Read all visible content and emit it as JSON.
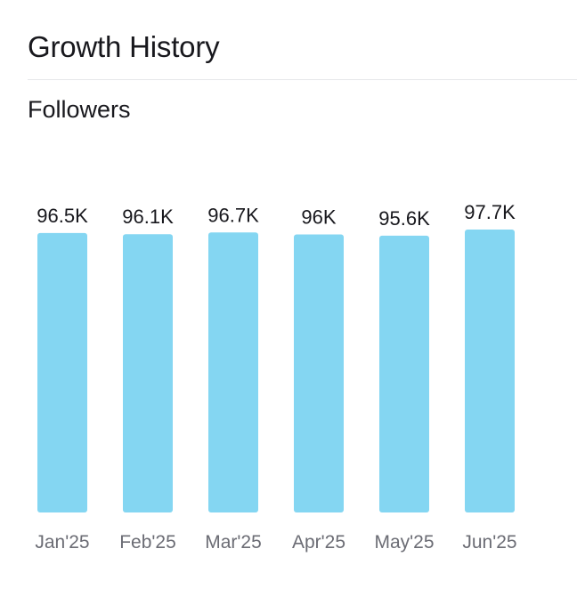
{
  "card": {
    "title": "Growth History"
  },
  "section": {
    "title": "Followers"
  },
  "colors": {
    "bar": "#84d6f2"
  },
  "chart_data": {
    "type": "bar",
    "categories": [
      "Jan'25",
      "Feb'25",
      "Mar'25",
      "Apr'25",
      "May'25",
      "Jun'25"
    ],
    "values": [
      96500,
      96100,
      96700,
      96000,
      95600,
      97700
    ],
    "data_labels": [
      "96.5K",
      "96.1K",
      "96.7K",
      "96K",
      "95.6K",
      "97.7K"
    ],
    "ylim": [
      0,
      97700
    ],
    "grid": false,
    "legend": "none"
  }
}
